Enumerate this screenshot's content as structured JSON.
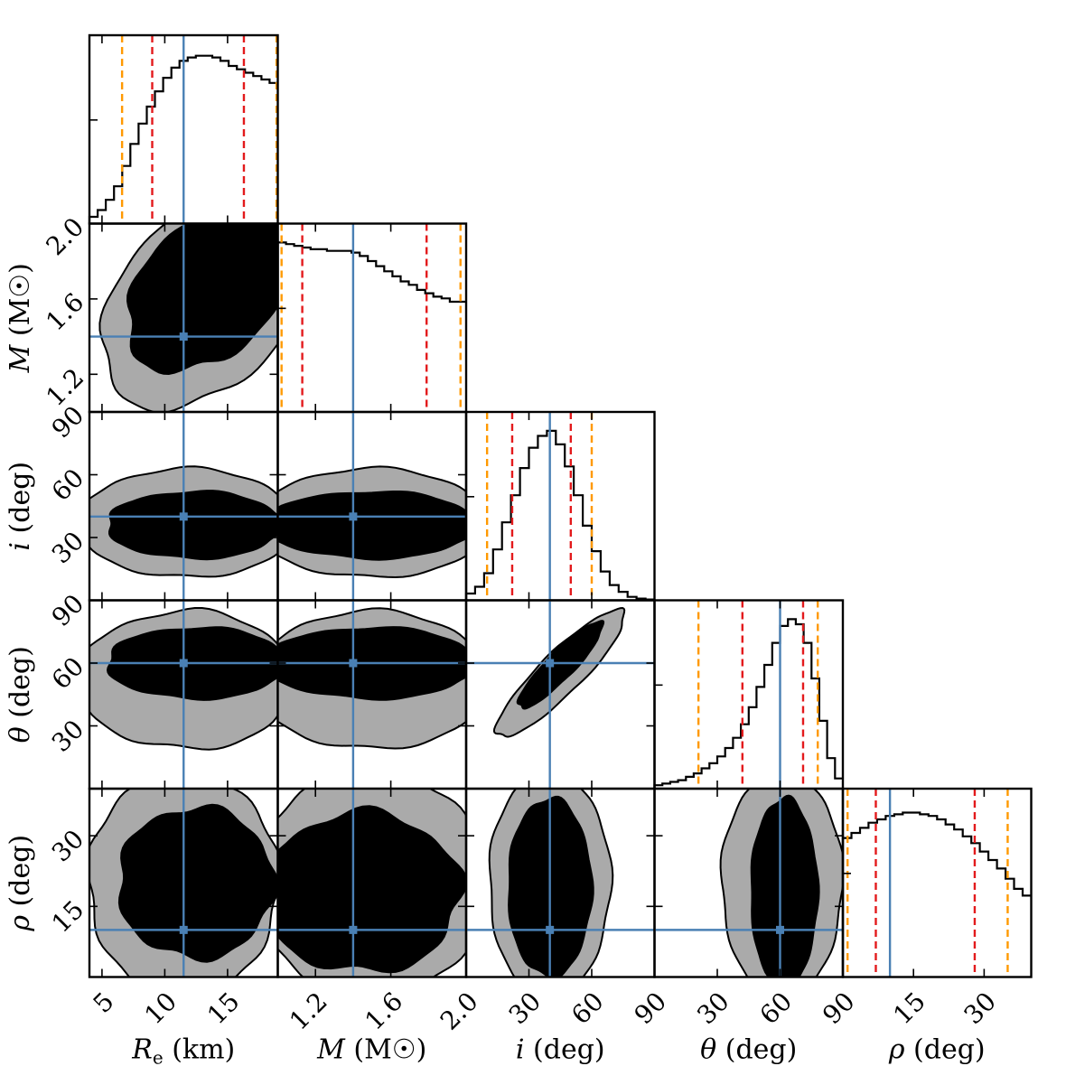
{
  "chart_data": {
    "type": "corner",
    "parameters": [
      {
        "key": "Re",
        "label": "R",
        "subscript": "e",
        "unit": " (km)",
        "range": [
          4,
          19
        ],
        "ticks": [
          5,
          10,
          15
        ],
        "tick_labels": [
          "5",
          "10",
          "15"
        ],
        "truth": 11.5,
        "q95": [
          6.6,
          18.9
        ],
        "q68": [
          9.0,
          16.3
        ]
      },
      {
        "key": "M",
        "label": "M",
        "subscript": "",
        "unit": " (M☉)",
        "ylabel_unit": " (M☉)",
        "range": [
          1.0,
          2.0
        ],
        "ticks": [
          1.2,
          1.6,
          2.0
        ],
        "tick_labels": [
          "1.2",
          "1.6",
          "2.0"
        ],
        "truth": 1.4,
        "q95": [
          1.02,
          1.97
        ],
        "q68": [
          1.13,
          1.79
        ]
      },
      {
        "key": "i",
        "label": "i",
        "subscript": "",
        "unit": " (deg)",
        "range": [
          0,
          90
        ],
        "ticks": [
          30,
          60,
          90
        ],
        "tick_labels": [
          "30",
          "60",
          "90"
        ],
        "truth": 40,
        "q95": [
          10,
          60
        ],
        "q68": [
          22,
          50
        ]
      },
      {
        "key": "theta",
        "label": "θ",
        "subscript": "",
        "unit": " (deg)",
        "range": [
          0,
          90
        ],
        "ticks": [
          30,
          60,
          90
        ],
        "tick_labels": [
          "30",
          "60",
          "90"
        ],
        "truth": 60,
        "q95": [
          21,
          78
        ],
        "q68": [
          42,
          71
        ]
      },
      {
        "key": "rho",
        "label": "ρ",
        "subscript": "",
        "unit": " (deg)",
        "range": [
          0,
          40
        ],
        "ticks": [
          15,
          30
        ],
        "tick_labels": [
          "15",
          "30"
        ],
        "truth": 10,
        "q95": [
          1,
          35
        ],
        "q68": [
          7,
          28
        ]
      }
    ],
    "histograms": [
      [
        0.04,
        0.08,
        0.14,
        0.22,
        0.34,
        0.47,
        0.59,
        0.69,
        0.78,
        0.86,
        0.92,
        0.96,
        0.98,
        0.99,
        0.99,
        0.98,
        0.96,
        0.93,
        0.91,
        0.89,
        0.87,
        0.85,
        0.83
      ],
      [
        1.0,
        0.99,
        0.98,
        0.97,
        0.96,
        0.96,
        0.95,
        0.95,
        0.95,
        0.94,
        0.92,
        0.89,
        0.86,
        0.83,
        0.8,
        0.77,
        0.75,
        0.72,
        0.7,
        0.68,
        0.67,
        0.65,
        0.65
      ],
      [
        0.04,
        0.08,
        0.16,
        0.3,
        0.46,
        0.62,
        0.78,
        0.9,
        0.97,
        1.0,
        0.92,
        0.79,
        0.62,
        0.44,
        0.29,
        0.17,
        0.09,
        0.05,
        0.02,
        0.01,
        0.005
      ],
      [
        0.02,
        0.03,
        0.04,
        0.05,
        0.07,
        0.09,
        0.12,
        0.15,
        0.19,
        0.24,
        0.3,
        0.38,
        0.48,
        0.6,
        0.73,
        0.86,
        0.96,
        1.0,
        0.97,
        0.86,
        0.65,
        0.4,
        0.18,
        0.06
      ],
      [
        0.82,
        0.85,
        0.88,
        0.91,
        0.93,
        0.95,
        0.96,
        0.97,
        0.97,
        0.96,
        0.95,
        0.93,
        0.9,
        0.87,
        0.83,
        0.79,
        0.74,
        0.69,
        0.64,
        0.58,
        0.52,
        0.48
      ]
    ],
    "contour_levels": [
      "68%",
      "95%"
    ],
    "legend": "none",
    "colors": {
      "truth": "#4a80b4",
      "q68": "#e31a1c",
      "q95": "#ff9900",
      "contour68": "#000000",
      "contour95": "#aaaaaa"
    }
  }
}
